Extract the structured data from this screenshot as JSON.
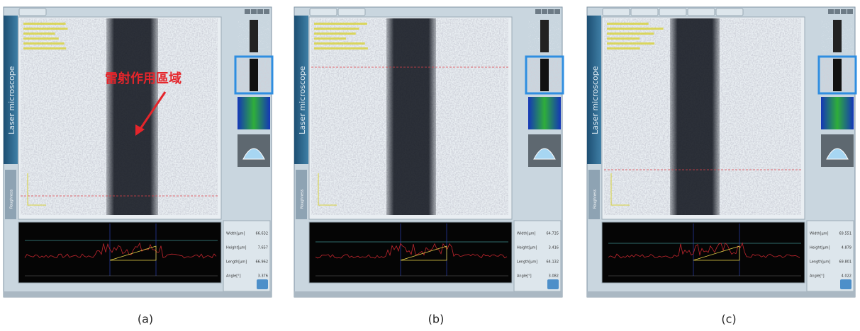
{
  "panels": [
    {
      "caption": "(a)",
      "sidebar": "Laser microscope",
      "side_tab": "Roughness",
      "annotation": "雷射作用區域",
      "measurements": [
        {
          "label": "Width[μm]",
          "value": "66.632"
        },
        {
          "label": "Height[μm]",
          "value": "7.657"
        },
        {
          "label": "Length[μm]",
          "value": "66.962"
        },
        {
          "label": "Angle[°]",
          "value": "3.376"
        }
      ]
    },
    {
      "caption": "(b)",
      "sidebar": "Laser microscope",
      "side_tab": "Roughness",
      "measurements": [
        {
          "label": "Width[μm]",
          "value": "64.735"
        },
        {
          "label": "Height[μm]",
          "value": "3.416"
        },
        {
          "label": "Length[μm]",
          "value": "64.132"
        },
        {
          "label": "Angle[°]",
          "value": "3.082"
        }
      ]
    },
    {
      "caption": "(c)",
      "sidebar": "Laser microscope",
      "side_tab": "Roughness",
      "measurements": [
        {
          "label": "Width[μm]",
          "value": "69.551"
        },
        {
          "label": "Height[μm]",
          "value": "4.879"
        },
        {
          "label": "Length[μm]",
          "value": "69.801"
        },
        {
          "label": "Angle[°]",
          "value": "4.022"
        }
      ]
    }
  ]
}
